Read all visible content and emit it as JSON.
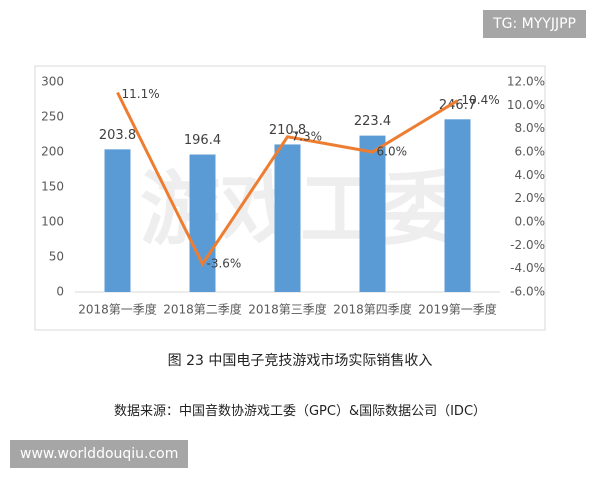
{
  "tag": "TG: MYYJJPP",
  "background_mark": "游戏工委",
  "caption": "图 23  中国电子竞技游戏市场实际销售收入",
  "source": "数据来源：中国音数协游戏工委（GPC）&国际数据公司（IDC）",
  "url": "www.worlddouqiu.com",
  "chart_data": {
    "type": "bar-line",
    "categories": [
      "2018第一季度",
      "2018第二季度",
      "2018第三季度",
      "2018第四季度",
      "2019第一季度"
    ],
    "series": [
      {
        "type": "bar",
        "color": "#5b9bd5",
        "values": [
          203.8,
          196.4,
          210.8,
          223.4,
          246.7
        ]
      },
      {
        "type": "line",
        "axis": "y2",
        "color": "#ed7d31",
        "values": [
          11.1,
          -3.6,
          7.3,
          6.0,
          10.4
        ],
        "value_labels": [
          "11.1%",
          "-3.6%",
          "7.3%",
          "6.0%",
          "10.4%"
        ]
      }
    ],
    "ylim": [
      0,
      300
    ],
    "yticks": [
      0,
      50,
      100,
      150,
      200,
      250,
      300
    ],
    "y2lim": [
      -6,
      12
    ],
    "y2ticks": [
      {
        "value": -6,
        "label": "-6.0%"
      },
      {
        "value": -4,
        "label": "-4.0%"
      },
      {
        "value": -2,
        "label": "-2.0%"
      },
      {
        "value": 0,
        "label": "0.0%"
      },
      {
        "value": 2,
        "label": "2.0%"
      },
      {
        "value": 4,
        "label": "4.0%"
      },
      {
        "value": 6,
        "label": "6.0%"
      },
      {
        "value": 8,
        "label": "8.0%"
      },
      {
        "value": 10,
        "label": "10.0%"
      },
      {
        "value": 12,
        "label": "12.0%"
      }
    ]
  }
}
